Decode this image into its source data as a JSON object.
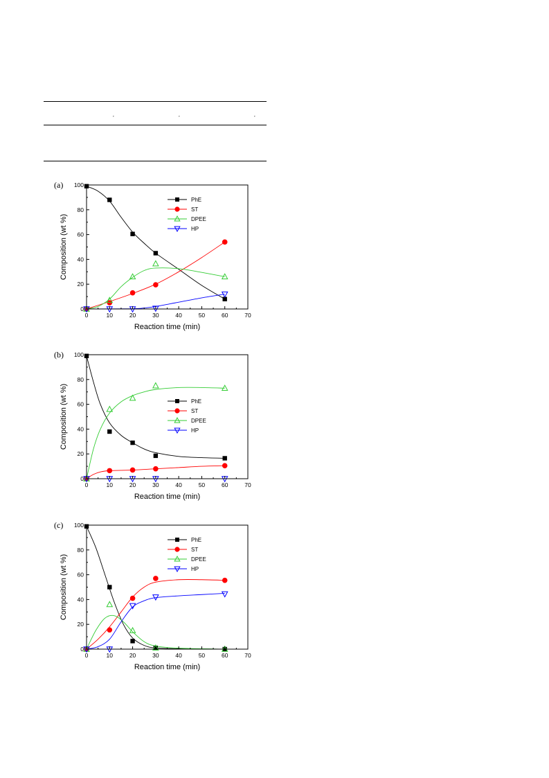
{
  "header_table": {
    "marks": [
      ",",
      ",",
      ","
    ]
  },
  "chart_data": [
    {
      "type": "line",
      "panel_label": "(a)",
      "xlabel": "Reaction time (min)",
      "ylabel": "Composition (wt %)",
      "xlim": [
        0,
        70
      ],
      "ylim": [
        0,
        100
      ],
      "xticks": [
        "0",
        "10",
        "20",
        "30",
        "40",
        "50",
        "60",
        "70"
      ],
      "yticks": [
        "0",
        "20",
        "40",
        "60",
        "80",
        "100"
      ],
      "legend_position": "top-right",
      "series": [
        {
          "name": "PhE",
          "color": "#000000",
          "marker": "square",
          "x": [
            0,
            10,
            20,
            30,
            60
          ],
          "y": [
            99,
            88,
            60.5,
            45,
            8
          ],
          "fit": [
            [
              0,
              99
            ],
            [
              5,
              95
            ],
            [
              10,
              87
            ],
            [
              15,
              74
            ],
            [
              20,
              62
            ],
            [
              25,
              53
            ],
            [
              30,
              45
            ],
            [
              40,
              32
            ],
            [
              50,
              19
            ],
            [
              60,
              8
            ]
          ]
        },
        {
          "name": "ST",
          "color": "#ff0000",
          "marker": "circle",
          "x": [
            0,
            10,
            20,
            30,
            60
          ],
          "y": [
            0,
            5,
            13,
            19.5,
            54
          ],
          "fit": [
            [
              0,
              0
            ],
            [
              10,
              6
            ],
            [
              20,
              12.5
            ],
            [
              30,
              20
            ],
            [
              40,
              30
            ],
            [
              50,
              41.5
            ],
            [
              60,
              54
            ]
          ]
        },
        {
          "name": "DPEE",
          "color": "#33cc33",
          "marker": "triangle-up",
          "x": [
            0,
            10,
            20,
            30,
            60
          ],
          "y": [
            0,
            7,
            26,
            36.5,
            26
          ],
          "fit": [
            [
              0,
              0
            ],
            [
              5,
              2
            ],
            [
              10,
              8
            ],
            [
              15,
              18
            ],
            [
              20,
              25.5
            ],
            [
              25,
              31
            ],
            [
              30,
              33
            ],
            [
              40,
              32.5
            ],
            [
              50,
              29.5
            ],
            [
              60,
              26
            ]
          ]
        },
        {
          "name": "HP",
          "color": "#0000ff",
          "marker": "triangle-down",
          "x": [
            0,
            10,
            20,
            30,
            60
          ],
          "y": [
            0,
            0,
            0,
            0.5,
            12
          ],
          "fit": [
            [
              0,
              0
            ],
            [
              20,
              0.2
            ],
            [
              25,
              0.8
            ],
            [
              30,
              2
            ],
            [
              40,
              5.5
            ],
            [
              50,
              9
            ],
            [
              60,
              12
            ]
          ]
        }
      ]
    },
    {
      "type": "line",
      "panel_label": "(b)",
      "xlabel": "Reaction time (min)",
      "ylabel": "Composition (wt %)",
      "xlim": [
        0,
        70
      ],
      "ylim": [
        0,
        100
      ],
      "xticks": [
        "0",
        "10",
        "20",
        "30",
        "40",
        "50",
        "60",
        "70"
      ],
      "yticks": [
        "0",
        "20",
        "40",
        "60",
        "80",
        "100"
      ],
      "legend_position": "center-right",
      "series": [
        {
          "name": "PhE",
          "color": "#000000",
          "marker": "square",
          "x": [
            0,
            10,
            20,
            30,
            60
          ],
          "y": [
            99,
            38,
            29,
            18.5,
            16.5
          ],
          "fit": [
            [
              0,
              99
            ],
            [
              3,
              78
            ],
            [
              6,
              60
            ],
            [
              10,
              45
            ],
            [
              15,
              35
            ],
            [
              20,
              29
            ],
            [
              25,
              24
            ],
            [
              30,
              21
            ],
            [
              40,
              18
            ],
            [
              50,
              17
            ],
            [
              60,
              16.5
            ]
          ]
        },
        {
          "name": "ST",
          "color": "#ff0000",
          "marker": "circle",
          "x": [
            0,
            10,
            20,
            30,
            60
          ],
          "y": [
            0,
            6.5,
            7,
            8,
            10.5
          ],
          "fit": [
            [
              0,
              0
            ],
            [
              3,
              3.5
            ],
            [
              6,
              5.5
            ],
            [
              10,
              6.5
            ],
            [
              20,
              7
            ],
            [
              30,
              8
            ],
            [
              40,
              9
            ],
            [
              50,
              10
            ],
            [
              60,
              10.5
            ]
          ]
        },
        {
          "name": "DPEE",
          "color": "#33cc33",
          "marker": "triangle-up",
          "x": [
            0,
            10,
            20,
            30,
            60
          ],
          "y": [
            0,
            56,
            65,
            75,
            73
          ],
          "fit": [
            [
              0,
              0
            ],
            [
              3,
              24
            ],
            [
              6,
              40
            ],
            [
              10,
              53
            ],
            [
              15,
              62
            ],
            [
              20,
              67
            ],
            [
              25,
              70
            ],
            [
              30,
              72
            ],
            [
              40,
              73.5
            ],
            [
              50,
              73.5
            ],
            [
              60,
              73
            ]
          ]
        },
        {
          "name": "HP",
          "color": "#0000ff",
          "marker": "triangle-down",
          "x": [
            0,
            10,
            20,
            30,
            60
          ],
          "y": [
            0,
            0,
            0,
            0,
            0
          ],
          "fit": [
            [
              0,
              0
            ],
            [
              60,
              0
            ]
          ]
        }
      ]
    },
    {
      "type": "line",
      "panel_label": "(c)",
      "xlabel": "Reaction time (min)",
      "ylabel": "Composition (wt %)",
      "xlim": [
        0,
        70
      ],
      "ylim": [
        0,
        100
      ],
      "xticks": [
        "0",
        "10",
        "20",
        "30",
        "40",
        "50",
        "60",
        "70"
      ],
      "yticks": [
        "0",
        "20",
        "40",
        "60",
        "80",
        "100"
      ],
      "legend_position": "top-right",
      "series": [
        {
          "name": "PhE",
          "color": "#000000",
          "marker": "square",
          "x": [
            0,
            10,
            20,
            30,
            60
          ],
          "y": [
            99,
            50,
            6.5,
            1,
            0
          ],
          "fit": [
            [
              0,
              99
            ],
            [
              4,
              82
            ],
            [
              8,
              60
            ],
            [
              12,
              38
            ],
            [
              16,
              20
            ],
            [
              20,
              9
            ],
            [
              25,
              3
            ],
            [
              30,
              1
            ],
            [
              40,
              0.3
            ],
            [
              60,
              0
            ]
          ]
        },
        {
          "name": "ST",
          "color": "#ff0000",
          "marker": "circle",
          "x": [
            0,
            10,
            20,
            30,
            60
          ],
          "y": [
            0,
            15.5,
            41,
            57,
            55.5
          ],
          "fit": [
            [
              0,
              0
            ],
            [
              5,
              8
            ],
            [
              10,
              18
            ],
            [
              15,
              30
            ],
            [
              20,
              42
            ],
            [
              25,
              50
            ],
            [
              30,
              54
            ],
            [
              40,
              56
            ],
            [
              50,
              56
            ],
            [
              60,
              55.5
            ]
          ]
        },
        {
          "name": "DPEE",
          "color": "#33cc33",
          "marker": "triangle-up",
          "x": [
            0,
            10,
            20,
            30,
            60
          ],
          "y": [
            0,
            36,
            15,
            1,
            0
          ],
          "fit": [
            [
              0,
              0
            ],
            [
              4,
              15
            ],
            [
              8,
              25
            ],
            [
              12,
              27
            ],
            [
              16,
              22
            ],
            [
              20,
              14
            ],
            [
              25,
              6
            ],
            [
              30,
              2.5
            ],
            [
              40,
              0.8
            ],
            [
              60,
              0
            ]
          ]
        },
        {
          "name": "HP",
          "color": "#0000ff",
          "marker": "triangle-down",
          "x": [
            0,
            10,
            20,
            30,
            60
          ],
          "y": [
            0,
            0,
            35,
            42,
            44.5
          ],
          "fit": [
            [
              0,
              0
            ],
            [
              5,
              2
            ],
            [
              10,
              8
            ],
            [
              15,
              22
            ],
            [
              20,
              34
            ],
            [
              25,
              39
            ],
            [
              30,
              41.5
            ],
            [
              40,
              43
            ],
            [
              50,
              44
            ],
            [
              60,
              45
            ]
          ]
        }
      ]
    }
  ]
}
